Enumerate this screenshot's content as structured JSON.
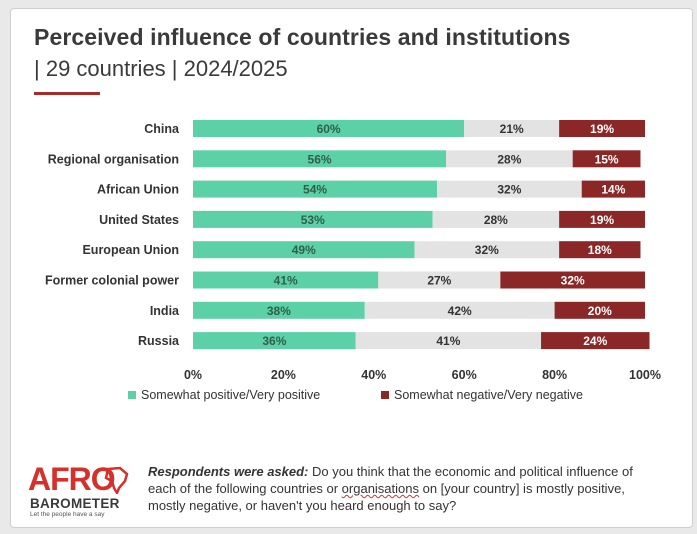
{
  "header": {
    "title": "Perceived influence of countries and institutions",
    "subtitle": "| 29 countries | 2024/2025"
  },
  "chart_data": {
    "type": "bar",
    "orientation": "horizontal",
    "stacked": true,
    "categories": [
      "China",
      "Regional organisation",
      "African Union",
      "United States",
      "European Union",
      "Former colonial power",
      "India",
      "Russia"
    ],
    "series": [
      {
        "name": "Somewhat positive/Very positive",
        "color": "#5cd0a6",
        "values": [
          60,
          56,
          54,
          53,
          49,
          41,
          38,
          36
        ]
      },
      {
        "name": "",
        "color": "#e3e3e3",
        "values": [
          21,
          28,
          32,
          28,
          32,
          27,
          42,
          41
        ]
      },
      {
        "name": "Somewhat negative/Very negative",
        "color": "#8b2727",
        "values": [
          19,
          15,
          14,
          19,
          18,
          32,
          20,
          24
        ]
      }
    ],
    "value_suffix": "%",
    "xlim": [
      0,
      100
    ],
    "xticks": [
      "0%",
      "20%",
      "40%",
      "60%",
      "80%",
      "100%"
    ],
    "legend_position": "bottom-left"
  },
  "legend": {
    "positive": "Somewhat positive/Very positive",
    "negative": "Somewhat negative/Very negative"
  },
  "logo": {
    "afro": "AFRO",
    "barometer": "BAROMETER",
    "tagline": "Let the people have a say"
  },
  "note": {
    "lead": "Respondents were asked:",
    "text_1": " Do you think that the economic and political influence of each of the following countries or ",
    "underlined": "organisations",
    "text_2": " on [your country] is mostly positive, mostly negative, or haven't you heard enough to say?"
  }
}
